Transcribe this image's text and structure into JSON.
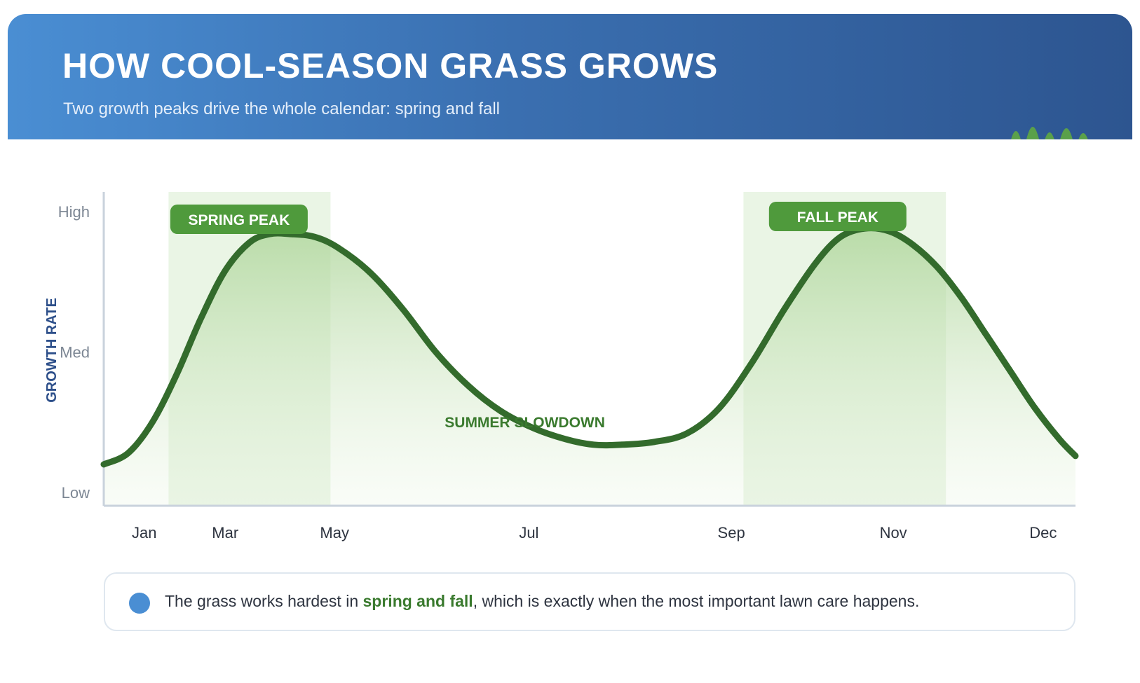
{
  "header": {
    "title": "HOW COOL-SEASON GRASS GROWS",
    "subtitle": "Two growth peaks drive the whole calendar: spring and fall"
  },
  "colors": {
    "header_start": "#4a8ed3",
    "header_end": "#2d5590",
    "curve": "#336b2c",
    "peak_label_bg": "#4f9a3c",
    "peak_band": "#e3f1dc",
    "axis": "#c9d2dc",
    "y_axis_title": "#2d4f8a",
    "callout_dot": "#4a8ed3",
    "callout_highlight": "#3a7a2e"
  },
  "chart_data": {
    "type": "area",
    "ylabel": "GROWTH RATE",
    "y_ticks": [
      {
        "label": "Low",
        "value": 0
      },
      {
        "label": "Med",
        "value": 50
      },
      {
        "label": "High",
        "value": 100
      }
    ],
    "ylim": [
      0,
      100
    ],
    "xlim": [
      0,
      12
    ],
    "x_ticks": [
      {
        "label": "Jan",
        "value": 0.5
      },
      {
        "label": "Mar",
        "value": 1.5
      },
      {
        "label": "May",
        "value": 2.85
      },
      {
        "label": "Jul",
        "value": 5.25
      },
      {
        "label": "Sep",
        "value": 7.75
      },
      {
        "label": "Nov",
        "value": 9.75
      },
      {
        "label": "Dec",
        "value": 11.6
      }
    ],
    "series": [
      {
        "x": [
          0,
          0.3,
          0.6,
          0.9,
          1.2,
          1.5,
          1.8,
          2.05,
          2.3,
          2.6,
          2.9,
          3.3,
          3.7,
          4.1,
          4.5,
          4.9,
          5.3,
          5.7,
          6.05,
          6.4,
          6.8,
          7.2,
          7.6,
          8.0,
          8.4,
          8.8,
          9.1,
          9.4,
          9.7,
          10.0,
          10.3,
          10.6,
          10.9,
          11.2,
          11.5,
          11.8,
          12.0
        ],
        "values": [
          10,
          14,
          25,
          42,
          62,
          79,
          89,
          92,
          92,
          91,
          87,
          78,
          65,
          50,
          38,
          29,
          23,
          19,
          17,
          17,
          18,
          21,
          30,
          46,
          65,
          82,
          91,
          94,
          93,
          88,
          80,
          69,
          56,
          43,
          30,
          19,
          13
        ]
      }
    ],
    "highlight_bands": [
      {
        "label": "SPRING PEAK",
        "x0": 0.8,
        "x1": 2.8
      },
      {
        "label": "FALL PEAK",
        "x0": 7.9,
        "x1": 10.4
      }
    ],
    "annotations": [
      {
        "text": "SUMMER SLOWDOWN",
        "x": 5.2,
        "y": 25
      }
    ],
    "grid": false,
    "legend": "none"
  },
  "callout": {
    "text_before": "The grass works hardest in ",
    "highlight": "spring and fall",
    "text_after": ", which is exactly when the most important lawn care happens."
  }
}
